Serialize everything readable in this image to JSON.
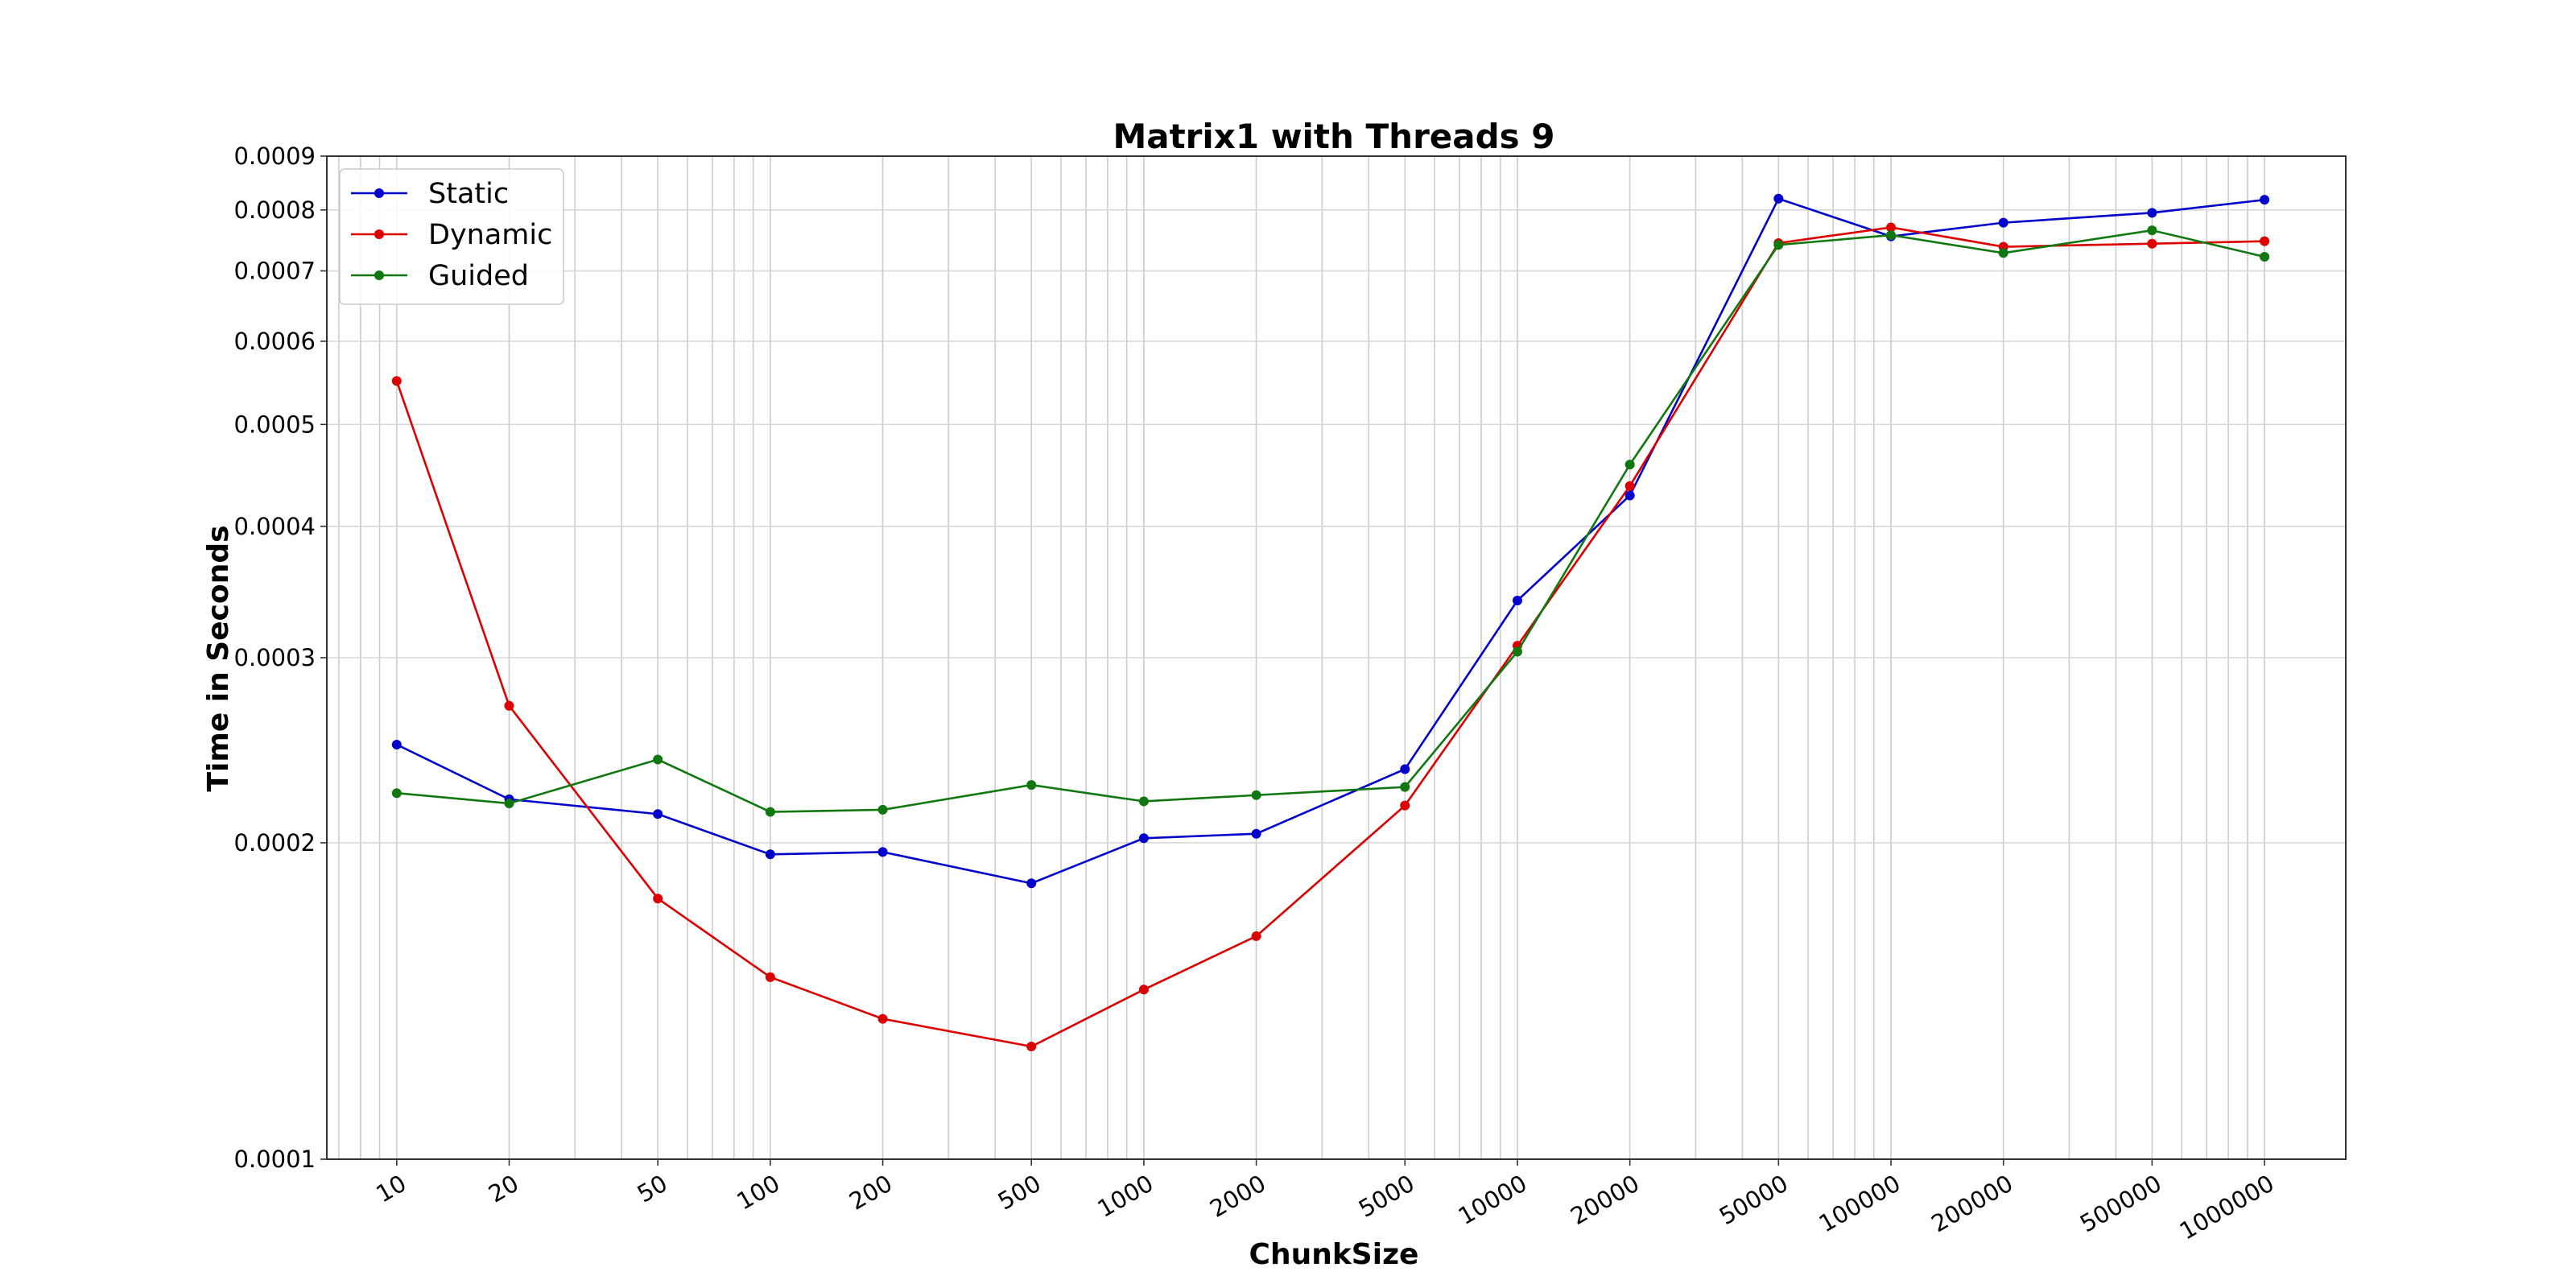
{
  "chart_data": {
    "type": "line",
    "title": "Matrix1 with Threads 9",
    "xlabel": "ChunkSize",
    "ylabel": "Time in Seconds",
    "xscale": "log",
    "yscale": "log",
    "xlim": [
      6.5,
      1650000
    ],
    "ylim": [
      0.0001,
      0.0009
    ],
    "grid": true,
    "legend": "top-left",
    "x": [
      10,
      20,
      50,
      100,
      200,
      500,
      1000,
      2000,
      5000,
      10000,
      20000,
      50000,
      100000,
      200000,
      500000,
      1000000
    ],
    "x_tick_labels": [
      "10",
      "20",
      "50",
      "100",
      "200",
      "500",
      "1000",
      "2000",
      "5000",
      "10000",
      "20000",
      "50000",
      "100000",
      "200000",
      "500000",
      "1000000"
    ],
    "y_ticks": [
      0.0001,
      0.0002,
      0.0003,
      0.0004,
      0.0005,
      0.0006,
      0.0007,
      0.0008,
      0.0009
    ],
    "y_tick_labels": [
      "0.0001",
      "0.0002",
      "0.0003",
      "0.0004",
      "0.0005",
      "0.0006",
      "0.0007",
      "0.0008",
      "0.0009"
    ],
    "series": [
      {
        "name": "Static",
        "color": "#0000cc",
        "values": [
          0.000248,
          0.00022,
          0.000213,
          0.000195,
          0.000196,
          0.000183,
          0.000202,
          0.000204,
          0.000235,
          0.00034,
          0.000428,
          0.00082,
          0.000755,
          0.000778,
          0.000795,
          0.000818
        ]
      },
      {
        "name": "Dynamic",
        "color": "#dd0000",
        "values": [
          0.00055,
          0.00027,
          0.000177,
          0.000149,
          0.000136,
          0.000128,
          0.000145,
          0.000163,
          0.000217,
          0.000308,
          0.000437,
          0.000744,
          0.00077,
          0.000738,
          0.000743,
          0.000747
        ]
      },
      {
        "name": "Guided",
        "color": "#117711",
        "values": [
          0.000223,
          0.000218,
          0.00024,
          0.000214,
          0.000215,
          0.000227,
          0.000219,
          0.000222,
          0.000226,
          0.000304,
          0.000458,
          0.000741,
          0.000757,
          0.000728,
          0.000765,
          0.000722
        ]
      }
    ]
  }
}
